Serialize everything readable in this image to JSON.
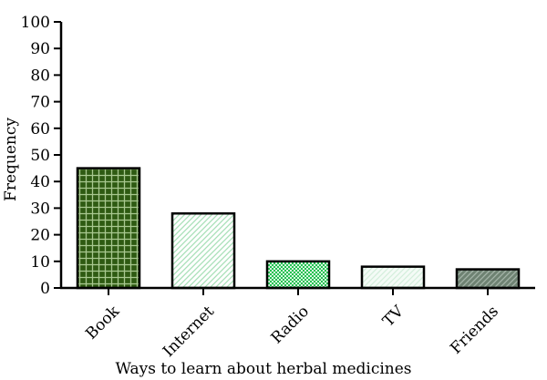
{
  "chart_data": {
    "type": "bar",
    "title": "",
    "xlabel": "Ways to learn about herbal medicines",
    "ylabel": "Frequency",
    "categories": [
      "Book",
      "Internet",
      "Radio",
      "TV",
      "Friends"
    ],
    "values": [
      45,
      28,
      10,
      8,
      7
    ],
    "ylim": [
      0,
      100
    ],
    "yticks": [
      "0",
      "10",
      "20",
      "30",
      "40",
      "50",
      "60",
      "70",
      "80",
      "90",
      "100"
    ],
    "grid": false,
    "legend": "none",
    "bar_styles": [
      {
        "pattern": "dark-green-check",
        "fill": "#2e5a12",
        "line": "#a8c890"
      },
      {
        "pattern": "light-green-diagonal",
        "fill": "#ffffff",
        "line": "#a8e0b8"
      },
      {
        "pattern": "green-dots",
        "fill": "#d8f5e0",
        "line": "#22c050"
      },
      {
        "pattern": "pale-diagonal",
        "fill": "#f4fbf6",
        "line": "#d4eedc"
      },
      {
        "pattern": "grey-green-diagonal",
        "fill": "#6e8272",
        "line": "#a4b4a8"
      }
    ]
  }
}
